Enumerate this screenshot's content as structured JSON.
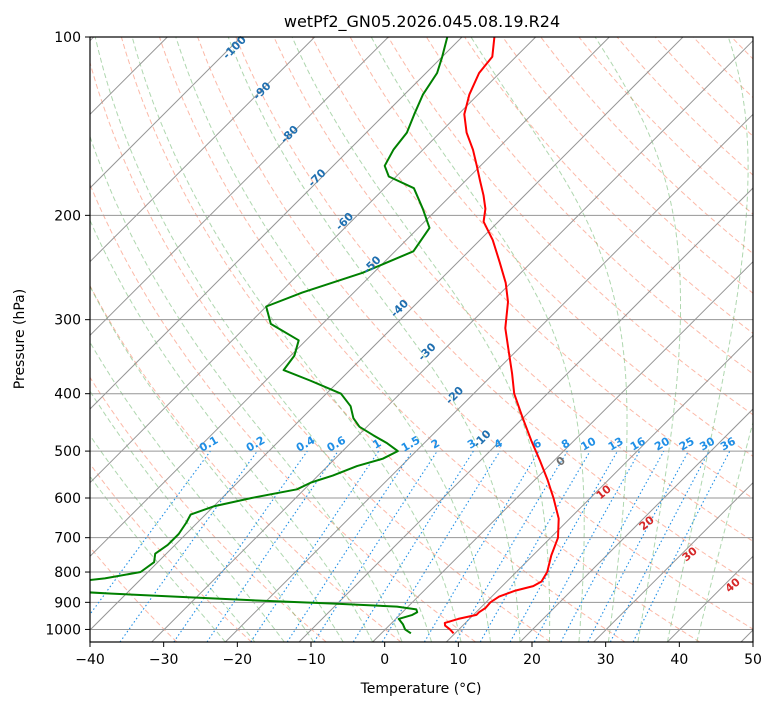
{
  "chart_data": {
    "type": "line",
    "title": "wetPf2_GN05.2026.045.08.19.R24",
    "xlabel": "Temperature (°C)",
    "ylabel": "Pressure (hPa)",
    "xlim": [
      -40,
      50
    ],
    "ylim": [
      1050,
      100
    ],
    "y_scale": "log",
    "skew": true,
    "grid": true,
    "x_ticks": [
      -40,
      -30,
      -20,
      -10,
      0,
      10,
      20,
      30,
      40,
      50
    ],
    "y_ticks": [
      100,
      200,
      300,
      400,
      500,
      600,
      700,
      800,
      900,
      1000
    ],
    "colors": {
      "temperature": "#ff0000",
      "dewpoint": "#008000",
      "isotherm": "#969696",
      "dry_adiabat": "#fa8060",
      "moist_adiabat": "#60b060",
      "mixing_ratio": "#1f8fe6",
      "theta_e_label": "#1f6fb0",
      "dry_label": "#d62728",
      "zero_label": "#707070"
    },
    "series": [
      {
        "key": "temperature",
        "p": [
          1015,
          1000,
          985,
          975,
          960,
          945,
          935,
          920,
          900,
          880,
          860,
          845,
          830,
          800,
          750,
          700,
          650,
          600,
          560,
          520,
          480,
          440,
          400,
          370,
          340,
          310,
          280,
          260,
          240,
          220,
          205,
          195,
          185,
          175,
          165,
          155,
          145,
          135,
          125,
          115,
          108,
          100
        ],
        "t": [
          9.8,
          8.8,
          7.6,
          7.2,
          8.5,
          10.4,
          10.4,
          10.7,
          10.6,
          11.0,
          12.4,
          14.2,
          14.7,
          14.2,
          12.5,
          11.0,
          8.5,
          5.0,
          1.8,
          -1.8,
          -5.8,
          -10.0,
          -14.5,
          -17.5,
          -20.9,
          -24.6,
          -27.8,
          -30.7,
          -34.3,
          -38.3,
          -42.0,
          -43.5,
          -45.6,
          -48.0,
          -50.5,
          -53.2,
          -56.4,
          -59.2,
          -61.2,
          -62.8,
          -63.2,
          -65.6
        ]
      },
      {
        "key": "dewpoint",
        "p": [
          1015,
          1000,
          980,
          960,
          945,
          935,
          925,
          915,
          905,
          895,
          880,
          870,
          860,
          852,
          840,
          820,
          800,
          770,
          745,
          720,
          690,
          660,
          640,
          620,
          600,
          580,
          565,
          550,
          530,
          515,
          500,
          485,
          470,
          455,
          440,
          420,
          400,
          380,
          365,
          345,
          325,
          305,
          285,
          270,
          250,
          230,
          210,
          195,
          180,
          172,
          165,
          155,
          145,
          135,
          125,
          115,
          108,
          100
        ],
        "t": [
          4.0,
          2.7,
          1.7,
          0.4,
          1.7,
          2.0,
          1.5,
          -1.5,
          -10.0,
          -20.0,
          -33.0,
          -42.0,
          -50.0,
          -55.0,
          -52.0,
          -45.0,
          -41.0,
          -40.5,
          -41.5,
          -41.0,
          -41.0,
          -41.5,
          -42.0,
          -40.0,
          -36.0,
          -31.0,
          -30.0,
          -28.0,
          -26.0,
          -23.5,
          -22.5,
          -25.0,
          -28.0,
          -31.0,
          -33.0,
          -35.0,
          -38.0,
          -44.0,
          -49.0,
          -49.5,
          -51.0,
          -57.0,
          -60.0,
          -57.0,
          -51.5,
          -47.5,
          -48.5,
          -52.0,
          -56.0,
          -61.0,
          -63.0,
          -64.0,
          -64.5,
          -66.0,
          -67.5,
          -68.5,
          -70.0,
          -72.0
        ]
      }
    ],
    "mixing_ratio_labels": [
      "0.1",
      "0.2",
      "0.4",
      "0.6",
      "1",
      "1.5",
      "2",
      "3",
      "4",
      "6",
      "8",
      "10",
      "13",
      "16",
      "20",
      "25",
      "30",
      "36"
    ],
    "mixing_ratio_values": [
      0.1,
      0.2,
      0.4,
      0.6,
      1,
      1.5,
      2,
      3,
      4,
      6,
      8,
      10,
      13,
      16,
      20,
      25,
      30,
      36
    ],
    "theta_e_labels": [
      "-100",
      "-90",
      "-80",
      "-70",
      "-60",
      "-50",
      "-40",
      "-30",
      "-20",
      "-10"
    ],
    "dry_adiabat_labels": [
      "0",
      "10",
      "20",
      "30",
      "40"
    ]
  }
}
